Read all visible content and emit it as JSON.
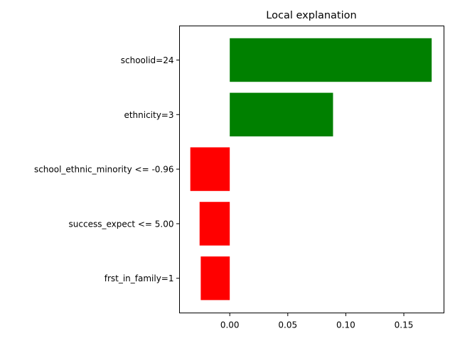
{
  "chart_data": {
    "type": "bar",
    "orientation": "horizontal",
    "title": "Local explanation",
    "xlabel": "",
    "ylabel": "",
    "xlim": [
      -0.0433,
      0.1846
    ],
    "categories": [
      "schoolid=24",
      "ethnicity=3",
      "school_ethnic_minority <= -0.96",
      "success_expect <= 5.00",
      "frst_in_family=1"
    ],
    "values": [
      0.174,
      0.089,
      -0.034,
      -0.026,
      -0.025
    ],
    "bar_colors": [
      "#008000",
      "#008000",
      "#ff0000",
      "#ff0000",
      "#ff0000"
    ],
    "x_ticks": [
      0.0,
      0.05,
      0.1,
      0.15
    ],
    "x_tick_labels": [
      "0.00",
      "0.05",
      "0.10",
      "0.15"
    ],
    "grid": false,
    "legend": "none"
  }
}
